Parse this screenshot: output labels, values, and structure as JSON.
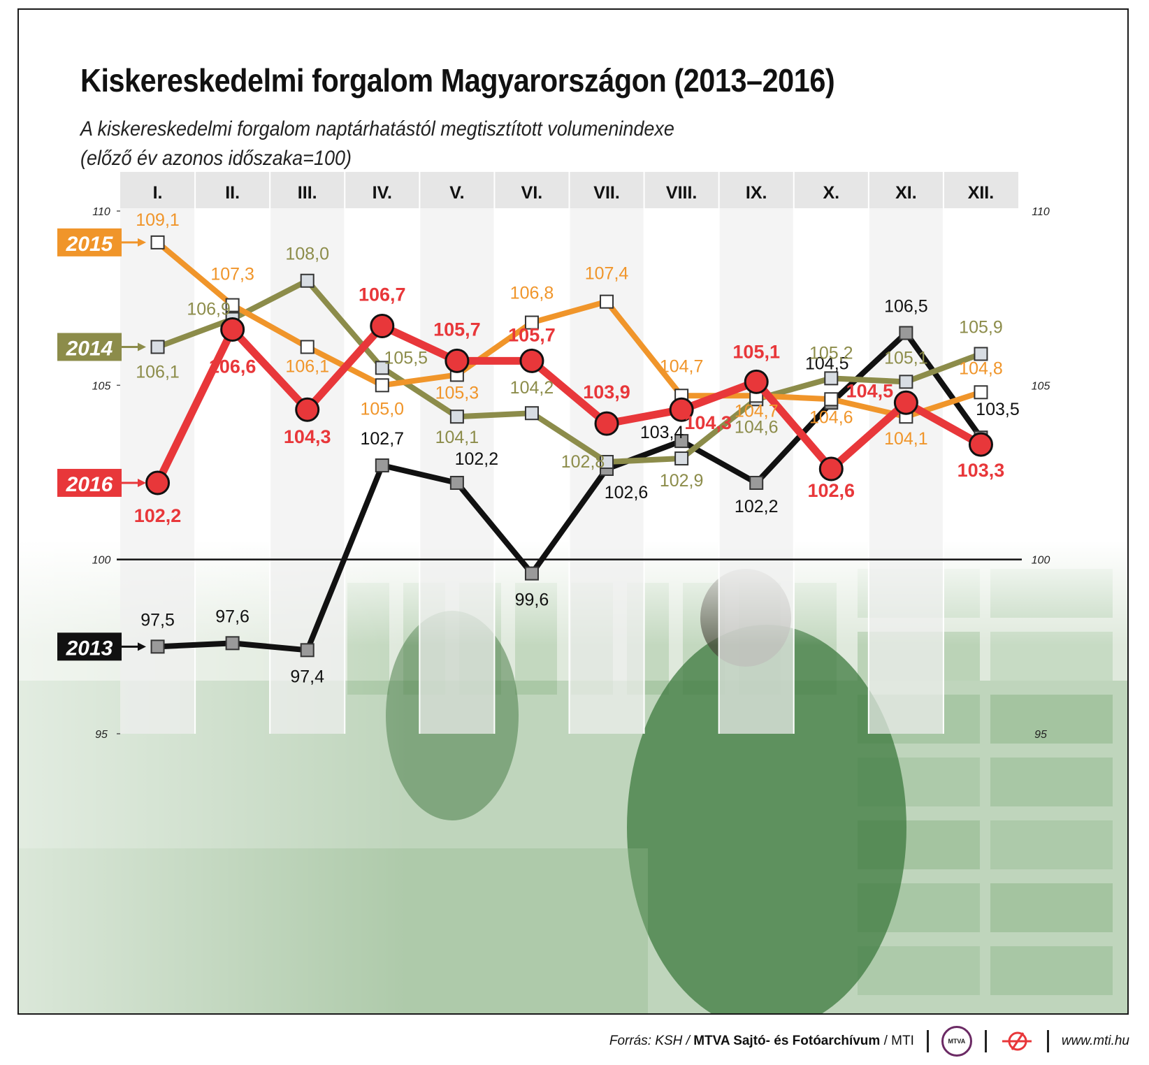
{
  "title": "Kiskereskedelmi forgalom Magyarországon (2013–2016)",
  "subtitle_line1": "A kiskereskedelmi forgalom naptárhatástól megtisztított volumenindexe",
  "subtitle_line2": "(előző év azonos időszaka=100)",
  "footer": {
    "source_prefix": "Forrás: KSH /",
    "source_bold": "MTVA Sajtó- és Fotóarchívum",
    "source_suffix": "/ MTI",
    "logo_text": "MTVA",
    "url": "www.mti.hu"
  },
  "colors": {
    "s2013": "#111111",
    "s2014": "#8c8c4a",
    "s2015": "#f0952a",
    "s2016": "#e8373a",
    "header_band": "#e6e6e6",
    "photo_tint": "#5e9c5a"
  },
  "chart_data": {
    "type": "line",
    "categories": [
      "I.",
      "II.",
      "III.",
      "IV.",
      "V.",
      "VI.",
      "VII.",
      "VIII.",
      "IX.",
      "X.",
      "XI.",
      "XII."
    ],
    "ylim": [
      95,
      110
    ],
    "yticks": [
      "110",
      "105",
      "100",
      "95"
    ],
    "grid": "vertical alternating bands",
    "reference_line": 100,
    "series": [
      {
        "name": "2013",
        "values": [
          97.5,
          97.6,
          97.4,
          102.7,
          102.2,
          99.6,
          102.6,
          103.4,
          102.2,
          104.5,
          106.5,
          103.5
        ],
        "labels": [
          "97,5",
          "97,6",
          "97,4",
          "102,7",
          "102,2",
          "99,6",
          "102,6",
          "103,4",
          "102,2",
          "104,5",
          "106,5",
          "103,5"
        ],
        "color": "#111111",
        "marker": "gray-square"
      },
      {
        "name": "2014",
        "values": [
          106.1,
          106.9,
          108.0,
          105.5,
          104.1,
          104.2,
          102.8,
          102.9,
          104.6,
          105.2,
          105.1,
          105.9
        ],
        "labels": [
          "106,1",
          "106,9",
          "108,0",
          "105,5",
          "104,1",
          "104,2",
          "102,8",
          "102,9",
          "104,6",
          "105,2",
          "105,1",
          "105,9"
        ],
        "color": "#8c8c4a",
        "marker": "lightgray-square"
      },
      {
        "name": "2015",
        "values": [
          109.1,
          107.3,
          106.1,
          105.0,
          105.3,
          106.8,
          107.4,
          104.7,
          104.7,
          104.6,
          104.1,
          104.8
        ],
        "labels": [
          "109,1",
          "107,3",
          "106,1",
          "105,0",
          "105,3",
          "106,8",
          "107,4",
          "104,7",
          "104,7",
          "104,6",
          "104,1",
          "104,8"
        ],
        "color": "#f0952a",
        "marker": "white-square"
      },
      {
        "name": "2016",
        "values": [
          102.2,
          106.6,
          104.3,
          106.7,
          105.7,
          105.7,
          103.9,
          104.3,
          105.1,
          102.6,
          104.5,
          103.3
        ],
        "labels": [
          "102,2",
          "106,6",
          "104,3",
          "106,7",
          "105,7",
          "105,7",
          "103,9",
          "104,3",
          "105,1",
          "102,6",
          "104,5",
          "103,3"
        ],
        "color": "#e8373a",
        "marker": "red-circle"
      }
    ]
  }
}
